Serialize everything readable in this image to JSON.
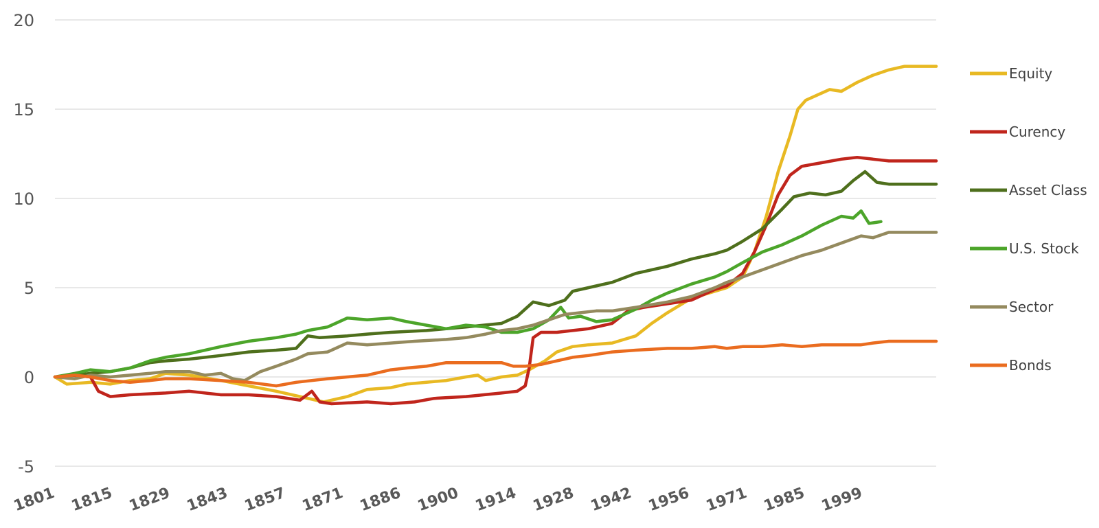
{
  "chart_data": {
    "type": "line",
    "title": "",
    "xlabel": "",
    "ylabel": "",
    "xlim": [
      1801,
      2024
    ],
    "ylim": [
      -5,
      20
    ],
    "yticks": [
      -5,
      0,
      5,
      10,
      15,
      20
    ],
    "xticks": [
      1801,
      1815,
      1829,
      1843,
      1857,
      1871,
      1886,
      1900,
      1914,
      1928,
      1942,
      1956,
      1971,
      1985,
      1999
    ],
    "grid": "horizontal",
    "legend": "right",
    "series": [
      {
        "name": "Equity",
        "color": "#e8b923",
        "points": [
          [
            1801,
            0
          ],
          [
            1804,
            -0.4
          ],
          [
            1810,
            -0.3
          ],
          [
            1815,
            -0.4
          ],
          [
            1820,
            -0.2
          ],
          [
            1825,
            -0.1
          ],
          [
            1829,
            0.2
          ],
          [
            1835,
            0.1
          ],
          [
            1843,
            -0.2
          ],
          [
            1850,
            -0.5
          ],
          [
            1857,
            -0.8
          ],
          [
            1865,
            -1.2
          ],
          [
            1869,
            -1.4
          ],
          [
            1875,
            -1.1
          ],
          [
            1880,
            -0.7
          ],
          [
            1886,
            -0.6
          ],
          [
            1890,
            -0.4
          ],
          [
            1895,
            -0.3
          ],
          [
            1900,
            -0.2
          ],
          [
            1905,
            0.0
          ],
          [
            1908,
            0.1
          ],
          [
            1910,
            -0.2
          ],
          [
            1914,
            0.0
          ],
          [
            1918,
            0.1
          ],
          [
            1921,
            0.4
          ],
          [
            1925,
            0.9
          ],
          [
            1928,
            1.4
          ],
          [
            1932,
            1.7
          ],
          [
            1936,
            1.8
          ],
          [
            1942,
            1.9
          ],
          [
            1948,
            2.3
          ],
          [
            1952,
            3.0
          ],
          [
            1956,
            3.6
          ],
          [
            1962,
            4.4
          ],
          [
            1968,
            4.8
          ],
          [
            1971,
            5.0
          ],
          [
            1975,
            5.6
          ],
          [
            1978,
            7.0
          ],
          [
            1981,
            9.0
          ],
          [
            1984,
            11.5
          ],
          [
            1987,
            13.5
          ],
          [
            1989,
            15.0
          ],
          [
            1991,
            15.5
          ],
          [
            1994,
            15.8
          ],
          [
            1997,
            16.1
          ],
          [
            2000,
            16.0
          ],
          [
            2004,
            16.5
          ],
          [
            2008,
            16.9
          ],
          [
            2012,
            17.2
          ],
          [
            2016,
            17.4
          ],
          [
            2024,
            17.4
          ]
        ]
      },
      {
        "name": "Curency",
        "color": "#c0251c",
        "points": [
          [
            1801,
            0
          ],
          [
            1805,
            0.1
          ],
          [
            1810,
            0.0
          ],
          [
            1812,
            -0.8
          ],
          [
            1815,
            -1.1
          ],
          [
            1820,
            -1.0
          ],
          [
            1829,
            -0.9
          ],
          [
            1835,
            -0.8
          ],
          [
            1843,
            -1.0
          ],
          [
            1850,
            -1.0
          ],
          [
            1857,
            -1.1
          ],
          [
            1863,
            -1.3
          ],
          [
            1866,
            -0.8
          ],
          [
            1868,
            -1.4
          ],
          [
            1871,
            -1.5
          ],
          [
            1880,
            -1.4
          ],
          [
            1886,
            -1.5
          ],
          [
            1892,
            -1.4
          ],
          [
            1897,
            -1.2
          ],
          [
            1905,
            -1.1
          ],
          [
            1914,
            -0.9
          ],
          [
            1918,
            -0.8
          ],
          [
            1920,
            -0.5
          ],
          [
            1921,
            0.5
          ],
          [
            1922,
            2.2
          ],
          [
            1924,
            2.5
          ],
          [
            1928,
            2.5
          ],
          [
            1932,
            2.6
          ],
          [
            1936,
            2.7
          ],
          [
            1942,
            3.0
          ],
          [
            1946,
            3.7
          ],
          [
            1950,
            3.9
          ],
          [
            1956,
            4.1
          ],
          [
            1962,
            4.3
          ],
          [
            1968,
            4.9
          ],
          [
            1971,
            5.1
          ],
          [
            1975,
            5.8
          ],
          [
            1978,
            7.0
          ],
          [
            1981,
            8.5
          ],
          [
            1984,
            10.2
          ],
          [
            1987,
            11.3
          ],
          [
            1990,
            11.8
          ],
          [
            1995,
            12.0
          ],
          [
            2000,
            12.2
          ],
          [
            2004,
            12.3
          ],
          [
            2008,
            12.2
          ],
          [
            2012,
            12.1
          ],
          [
            2024,
            12.1
          ]
        ]
      },
      {
        "name": "Asset Class",
        "color": "#4e6f1c",
        "points": [
          [
            1801,
            0
          ],
          [
            1806,
            0.1
          ],
          [
            1810,
            0.2
          ],
          [
            1815,
            0.3
          ],
          [
            1820,
            0.5
          ],
          [
            1825,
            0.8
          ],
          [
            1829,
            0.9
          ],
          [
            1835,
            1.0
          ],
          [
            1843,
            1.2
          ],
          [
            1850,
            1.4
          ],
          [
            1857,
            1.5
          ],
          [
            1862,
            1.6
          ],
          [
            1865,
            2.3
          ],
          [
            1868,
            2.2
          ],
          [
            1875,
            2.3
          ],
          [
            1880,
            2.4
          ],
          [
            1886,
            2.5
          ],
          [
            1895,
            2.6
          ],
          [
            1900,
            2.7
          ],
          [
            1905,
            2.8
          ],
          [
            1914,
            3.0
          ],
          [
            1918,
            3.4
          ],
          [
            1922,
            4.2
          ],
          [
            1926,
            4.0
          ],
          [
            1930,
            4.3
          ],
          [
            1932,
            4.8
          ],
          [
            1936,
            5.0
          ],
          [
            1942,
            5.3
          ],
          [
            1948,
            5.8
          ],
          [
            1956,
            6.2
          ],
          [
            1962,
            6.6
          ],
          [
            1968,
            6.9
          ],
          [
            1971,
            7.1
          ],
          [
            1975,
            7.6
          ],
          [
            1980,
            8.3
          ],
          [
            1985,
            9.4
          ],
          [
            1988,
            10.1
          ],
          [
            1992,
            10.3
          ],
          [
            1996,
            10.2
          ],
          [
            2000,
            10.4
          ],
          [
            2003,
            11.0
          ],
          [
            2006,
            11.5
          ],
          [
            2009,
            10.9
          ],
          [
            2012,
            10.8
          ],
          [
            2024,
            10.8
          ]
        ]
      },
      {
        "name": "U.S. Stock",
        "color": "#4ca52a",
        "points": [
          [
            1801,
            0
          ],
          [
            1806,
            0.2
          ],
          [
            1810,
            0.4
          ],
          [
            1815,
            0.3
          ],
          [
            1820,
            0.5
          ],
          [
            1825,
            0.9
          ],
          [
            1829,
            1.1
          ],
          [
            1835,
            1.3
          ],
          [
            1843,
            1.7
          ],
          [
            1850,
            2.0
          ],
          [
            1857,
            2.2
          ],
          [
            1862,
            2.4
          ],
          [
            1865,
            2.6
          ],
          [
            1870,
            2.8
          ],
          [
            1875,
            3.3
          ],
          [
            1880,
            3.2
          ],
          [
            1886,
            3.3
          ],
          [
            1890,
            3.1
          ],
          [
            1895,
            2.9
          ],
          [
            1900,
            2.7
          ],
          [
            1905,
            2.9
          ],
          [
            1910,
            2.8
          ],
          [
            1914,
            2.5
          ],
          [
            1918,
            2.5
          ],
          [
            1922,
            2.7
          ],
          [
            1926,
            3.2
          ],
          [
            1929,
            3.9
          ],
          [
            1931,
            3.3
          ],
          [
            1934,
            3.4
          ],
          [
            1938,
            3.1
          ],
          [
            1942,
            3.2
          ],
          [
            1948,
            3.8
          ],
          [
            1952,
            4.3
          ],
          [
            1956,
            4.7
          ],
          [
            1962,
            5.2
          ],
          [
            1968,
            5.6
          ],
          [
            1971,
            5.9
          ],
          [
            1975,
            6.4
          ],
          [
            1980,
            7.0
          ],
          [
            1985,
            7.4
          ],
          [
            1990,
            7.9
          ],
          [
            1995,
            8.5
          ],
          [
            2000,
            9.0
          ],
          [
            2003,
            8.9
          ],
          [
            2005,
            9.3
          ],
          [
            2007,
            8.6
          ],
          [
            2010,
            8.7
          ]
        ]
      },
      {
        "name": "Sector",
        "color": "#948a5e",
        "points": [
          [
            1801,
            0
          ],
          [
            1806,
            -0.1
          ],
          [
            1810,
            0.1
          ],
          [
            1815,
            0.0
          ],
          [
            1820,
            0.1
          ],
          [
            1825,
            0.2
          ],
          [
            1829,
            0.3
          ],
          [
            1835,
            0.3
          ],
          [
            1839,
            0.1
          ],
          [
            1843,
            0.2
          ],
          [
            1846,
            -0.1
          ],
          [
            1849,
            -0.2
          ],
          [
            1853,
            0.3
          ],
          [
            1857,
            0.6
          ],
          [
            1862,
            1.0
          ],
          [
            1865,
            1.3
          ],
          [
            1870,
            1.4
          ],
          [
            1875,
            1.9
          ],
          [
            1880,
            1.8
          ],
          [
            1886,
            1.9
          ],
          [
            1892,
            2.0
          ],
          [
            1900,
            2.1
          ],
          [
            1905,
            2.2
          ],
          [
            1910,
            2.4
          ],
          [
            1914,
            2.6
          ],
          [
            1918,
            2.7
          ],
          [
            1922,
            2.9
          ],
          [
            1926,
            3.2
          ],
          [
            1930,
            3.5
          ],
          [
            1934,
            3.6
          ],
          [
            1938,
            3.7
          ],
          [
            1942,
            3.7
          ],
          [
            1948,
            3.9
          ],
          [
            1956,
            4.2
          ],
          [
            1962,
            4.5
          ],
          [
            1968,
            5.0
          ],
          [
            1971,
            5.3
          ],
          [
            1975,
            5.6
          ],
          [
            1980,
            6.0
          ],
          [
            1985,
            6.4
          ],
          [
            1990,
            6.8
          ],
          [
            1995,
            7.1
          ],
          [
            2000,
            7.5
          ],
          [
            2005,
            7.9
          ],
          [
            2008,
            7.8
          ],
          [
            2012,
            8.1
          ],
          [
            2024,
            8.1
          ]
        ]
      },
      {
        "name": "Bonds",
        "color": "#ea6c1f",
        "points": [
          [
            1801,
            0
          ],
          [
            1806,
            0.1
          ],
          [
            1810,
            0.0
          ],
          [
            1815,
            -0.2
          ],
          [
            1820,
            -0.3
          ],
          [
            1825,
            -0.2
          ],
          [
            1829,
            -0.1
          ],
          [
            1835,
            -0.1
          ],
          [
            1843,
            -0.2
          ],
          [
            1850,
            -0.3
          ],
          [
            1857,
            -0.5
          ],
          [
            1862,
            -0.3
          ],
          [
            1866,
            -0.2
          ],
          [
            1870,
            -0.1
          ],
          [
            1875,
            0.0
          ],
          [
            1880,
            0.1
          ],
          [
            1886,
            0.4
          ],
          [
            1890,
            0.5
          ],
          [
            1895,
            0.6
          ],
          [
            1900,
            0.8
          ],
          [
            1905,
            0.8
          ],
          [
            1910,
            0.8
          ],
          [
            1914,
            0.8
          ],
          [
            1917,
            0.6
          ],
          [
            1920,
            0.6
          ],
          [
            1924,
            0.7
          ],
          [
            1928,
            0.9
          ],
          [
            1932,
            1.1
          ],
          [
            1936,
            1.2
          ],
          [
            1942,
            1.4
          ],
          [
            1948,
            1.5
          ],
          [
            1956,
            1.6
          ],
          [
            1962,
            1.6
          ],
          [
            1968,
            1.7
          ],
          [
            1971,
            1.6
          ],
          [
            1975,
            1.7
          ],
          [
            1980,
            1.7
          ],
          [
            1985,
            1.8
          ],
          [
            1990,
            1.7
          ],
          [
            1995,
            1.8
          ],
          [
            2000,
            1.8
          ],
          [
            2005,
            1.8
          ],
          [
            2008,
            1.9
          ],
          [
            2012,
            2.0
          ],
          [
            2024,
            2.0
          ]
        ]
      }
    ]
  }
}
